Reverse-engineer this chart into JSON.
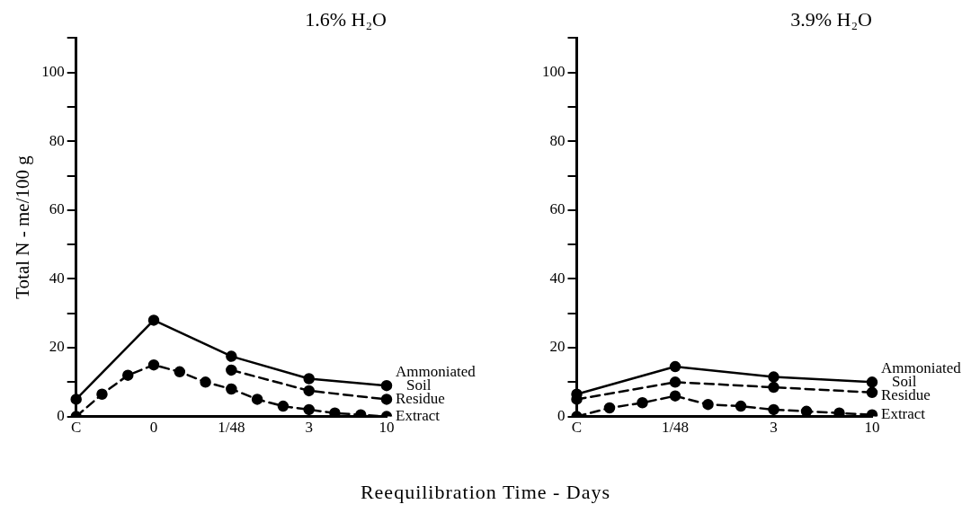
{
  "chart_data": [
    {
      "type": "line",
      "title": "1.6% H₂O",
      "xlabel": "Reequilibration Time - Days",
      "ylabel": "Total N - me/100 g",
      "categories": [
        "C",
        null,
        null,
        "0",
        null,
        null,
        "1/48",
        null,
        null,
        "3",
        null,
        null,
        "10"
      ],
      "ylim": [
        0,
        110
      ],
      "yticks": [
        0,
        {
          "value": 10,
          "label": null
        },
        20,
        {
          "value": 30,
          "label": null
        },
        40,
        {
          "value": 50,
          "label": null
        },
        60,
        {
          "value": 70,
          "label": null
        },
        80,
        {
          "value": 90,
          "label": null
        },
        100,
        {
          "value": 110,
          "label": null
        }
      ],
      "grid": false,
      "legend": false,
      "marker": "circle",
      "series": [
        {
          "name": "Ammoniated Soil",
          "color": "#000000",
          "line_style": "solid",
          "values": [
            5,
            null,
            null,
            28,
            null,
            null,
            17.5,
            null,
            null,
            11,
            null,
            null,
            9
          ]
        },
        {
          "name": "Residue",
          "color": "#000000",
          "line_style": "dashed",
          "values": [
            null,
            null,
            null,
            null,
            null,
            null,
            13.5,
            null,
            null,
            7.5,
            null,
            null,
            5
          ]
        },
        {
          "name": "Extract",
          "color": "#000000",
          "line_style": "dashed",
          "values": [
            0,
            6.5,
            12,
            15,
            13,
            10,
            8,
            5,
            3,
            2,
            1,
            0.5,
            0
          ]
        }
      ]
    },
    {
      "type": "line",
      "title": "3.9% H₂O",
      "categories": [
        "C",
        null,
        null,
        "1/48",
        null,
        null,
        "3",
        null,
        null,
        "10"
      ],
      "ylim": [
        0,
        110
      ],
      "yticks": [
        0,
        {
          "value": 10,
          "label": null
        },
        20,
        {
          "value": 30,
          "label": null
        },
        40,
        {
          "value": 50,
          "label": null
        },
        60,
        {
          "value": 70,
          "label": null
        },
        80,
        {
          "value": 90,
          "label": null
        },
        100,
        {
          "value": 110,
          "label": null
        }
      ],
      "grid": false,
      "legend": false,
      "marker": "circle",
      "series": [
        {
          "name": "Ammoniated Soil",
          "color": "#000000",
          "line_style": "solid",
          "values": [
            6.5,
            null,
            null,
            14.5,
            null,
            null,
            11.5,
            null,
            null,
            10
          ]
        },
        {
          "name": "Residue",
          "color": "#000000",
          "line_style": "dashed",
          "values": [
            5,
            null,
            null,
            10,
            null,
            null,
            8.5,
            null,
            null,
            7
          ]
        },
        {
          "name": "Extract",
          "color": "#000000",
          "line_style": "dashed",
          "values": [
            0,
            2.5,
            4,
            6,
            3.5,
            3,
            2,
            1.5,
            1,
            0.5
          ]
        }
      ]
    }
  ]
}
